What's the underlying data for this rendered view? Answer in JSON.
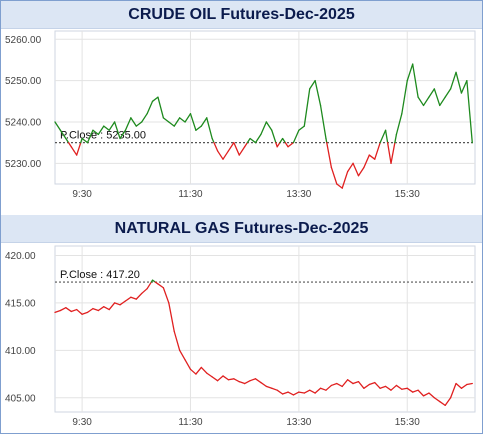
{
  "chart_data": [
    {
      "type": "line",
      "title": "CRUDE OIL Futures-Dec-2025",
      "prev_close_label": "P.Close : 5235.00",
      "prev_close": 5235.0,
      "ylim": [
        5225,
        5262
      ],
      "yticks": [
        5230,
        5240,
        5250,
        5260
      ],
      "ytick_labels": [
        "5230.00",
        "5240.00",
        "5250.00",
        "5260.00"
      ],
      "xlim": [
        9,
        16.75
      ],
      "xticks": [
        9.5,
        11.5,
        13.5,
        15.5
      ],
      "xtick_labels": [
        "9:30",
        "11:30",
        "13:30",
        "15:30"
      ],
      "above_color": "#1e8a1e",
      "below_color": "#e02020",
      "grid": true,
      "series": [
        {
          "x": [
            9.0,
            9.1,
            9.2,
            9.3,
            9.35,
            9.4,
            9.5,
            9.6,
            9.7,
            9.8,
            9.9,
            10.0,
            10.1,
            10.2,
            10.3,
            10.4,
            10.5,
            10.6,
            10.7,
            10.8,
            10.9,
            11.0,
            11.1,
            11.2,
            11.3,
            11.4,
            11.5,
            11.6,
            11.7,
            11.8,
            11.9,
            12.0,
            12.1,
            12.2,
            12.3,
            12.4,
            12.5,
            12.6,
            12.7,
            12.8,
            12.9,
            13.0,
            13.1,
            13.2,
            13.3,
            13.4,
            13.5,
            13.6,
            13.7,
            13.8,
            13.9,
            14.0,
            14.1,
            14.2,
            14.3,
            14.4,
            14.5,
            14.6,
            14.7,
            14.8,
            14.9,
            15.0,
            15.1,
            15.2,
            15.3,
            15.4,
            15.5,
            15.6,
            15.7,
            15.8,
            15.9,
            16.0,
            16.1,
            16.2,
            16.3,
            16.4,
            16.5,
            16.6,
            16.7
          ],
          "y": [
            5240,
            5238,
            5236,
            5234,
            5233,
            5232,
            5236,
            5235,
            5238,
            5237,
            5239,
            5238,
            5240,
            5236,
            5238,
            5241,
            5239,
            5240,
            5242,
            5245,
            5246,
            5241,
            5240,
            5239,
            5241,
            5240,
            5242,
            5238,
            5239,
            5241,
            5236,
            5233,
            5231,
            5233,
            5235,
            5232,
            5234,
            5236,
            5235,
            5237,
            5240,
            5238,
            5234,
            5236,
            5234,
            5235,
            5238,
            5239,
            5248,
            5250,
            5244,
            5236,
            5229,
            5225,
            5224,
            5228,
            5230,
            5227,
            5229,
            5232,
            5231,
            5235,
            5238,
            5230,
            5237,
            5242,
            5250,
            5254,
            5246,
            5244,
            5246,
            5248,
            5244,
            5246,
            5248,
            5252,
            5247,
            5250,
            5235
          ]
        }
      ]
    },
    {
      "type": "line",
      "title": "NATURAL GAS Futures-Dec-2025",
      "prev_close_label": "P.Close : 417.20",
      "prev_close": 417.2,
      "ylim": [
        403.5,
        421
      ],
      "yticks": [
        405,
        410,
        415,
        420
      ],
      "ytick_labels": [
        "405.00",
        "410.00",
        "415.00",
        "420.00"
      ],
      "xlim": [
        9,
        16.75
      ],
      "xticks": [
        9.5,
        11.5,
        13.5,
        15.5
      ],
      "xtick_labels": [
        "9:30",
        "11:30",
        "13:30",
        "15:30"
      ],
      "above_color": "#1e8a1e",
      "below_color": "#e02020",
      "grid": true,
      "series": [
        {
          "x": [
            9.0,
            9.1,
            9.2,
            9.3,
            9.4,
            9.5,
            9.6,
            9.7,
            9.8,
            9.9,
            10.0,
            10.1,
            10.2,
            10.3,
            10.4,
            10.5,
            10.6,
            10.7,
            10.8,
            10.9,
            11.0,
            11.1,
            11.2,
            11.3,
            11.4,
            11.5,
            11.6,
            11.7,
            11.8,
            11.9,
            12.0,
            12.1,
            12.2,
            12.3,
            12.4,
            12.5,
            12.6,
            12.7,
            12.8,
            12.9,
            13.0,
            13.1,
            13.2,
            13.3,
            13.4,
            13.5,
            13.6,
            13.7,
            13.8,
            13.9,
            14.0,
            14.1,
            14.2,
            14.3,
            14.4,
            14.5,
            14.6,
            14.7,
            14.8,
            14.9,
            15.0,
            15.1,
            15.2,
            15.3,
            15.4,
            15.5,
            15.6,
            15.7,
            15.8,
            15.9,
            16.0,
            16.1,
            16.2,
            16.3,
            16.4,
            16.5,
            16.6,
            16.7
          ],
          "y": [
            414.0,
            414.2,
            414.5,
            414.1,
            414.3,
            413.8,
            414.0,
            414.4,
            414.2,
            414.6,
            414.3,
            415.0,
            414.8,
            415.2,
            415.6,
            415.4,
            416.0,
            416.5,
            417.4,
            417.0,
            416.6,
            415.0,
            412.0,
            410.0,
            409.0,
            408.0,
            407.5,
            408.2,
            407.6,
            407.2,
            406.8,
            407.3,
            406.9,
            407.0,
            406.7,
            406.5,
            406.8,
            407.0,
            406.6,
            406.2,
            406.0,
            405.8,
            405.4,
            405.6,
            405.3,
            405.6,
            405.5,
            405.8,
            405.5,
            406.0,
            405.8,
            406.3,
            406.5,
            406.2,
            406.9,
            406.5,
            406.7,
            406.0,
            406.4,
            406.6,
            406.0,
            406.2,
            405.8,
            406.3,
            405.9,
            406.0,
            405.6,
            405.8,
            405.2,
            405.5,
            405.0,
            404.6,
            404.2,
            405.0,
            406.5,
            406.0,
            406.4,
            406.5
          ]
        }
      ]
    }
  ]
}
